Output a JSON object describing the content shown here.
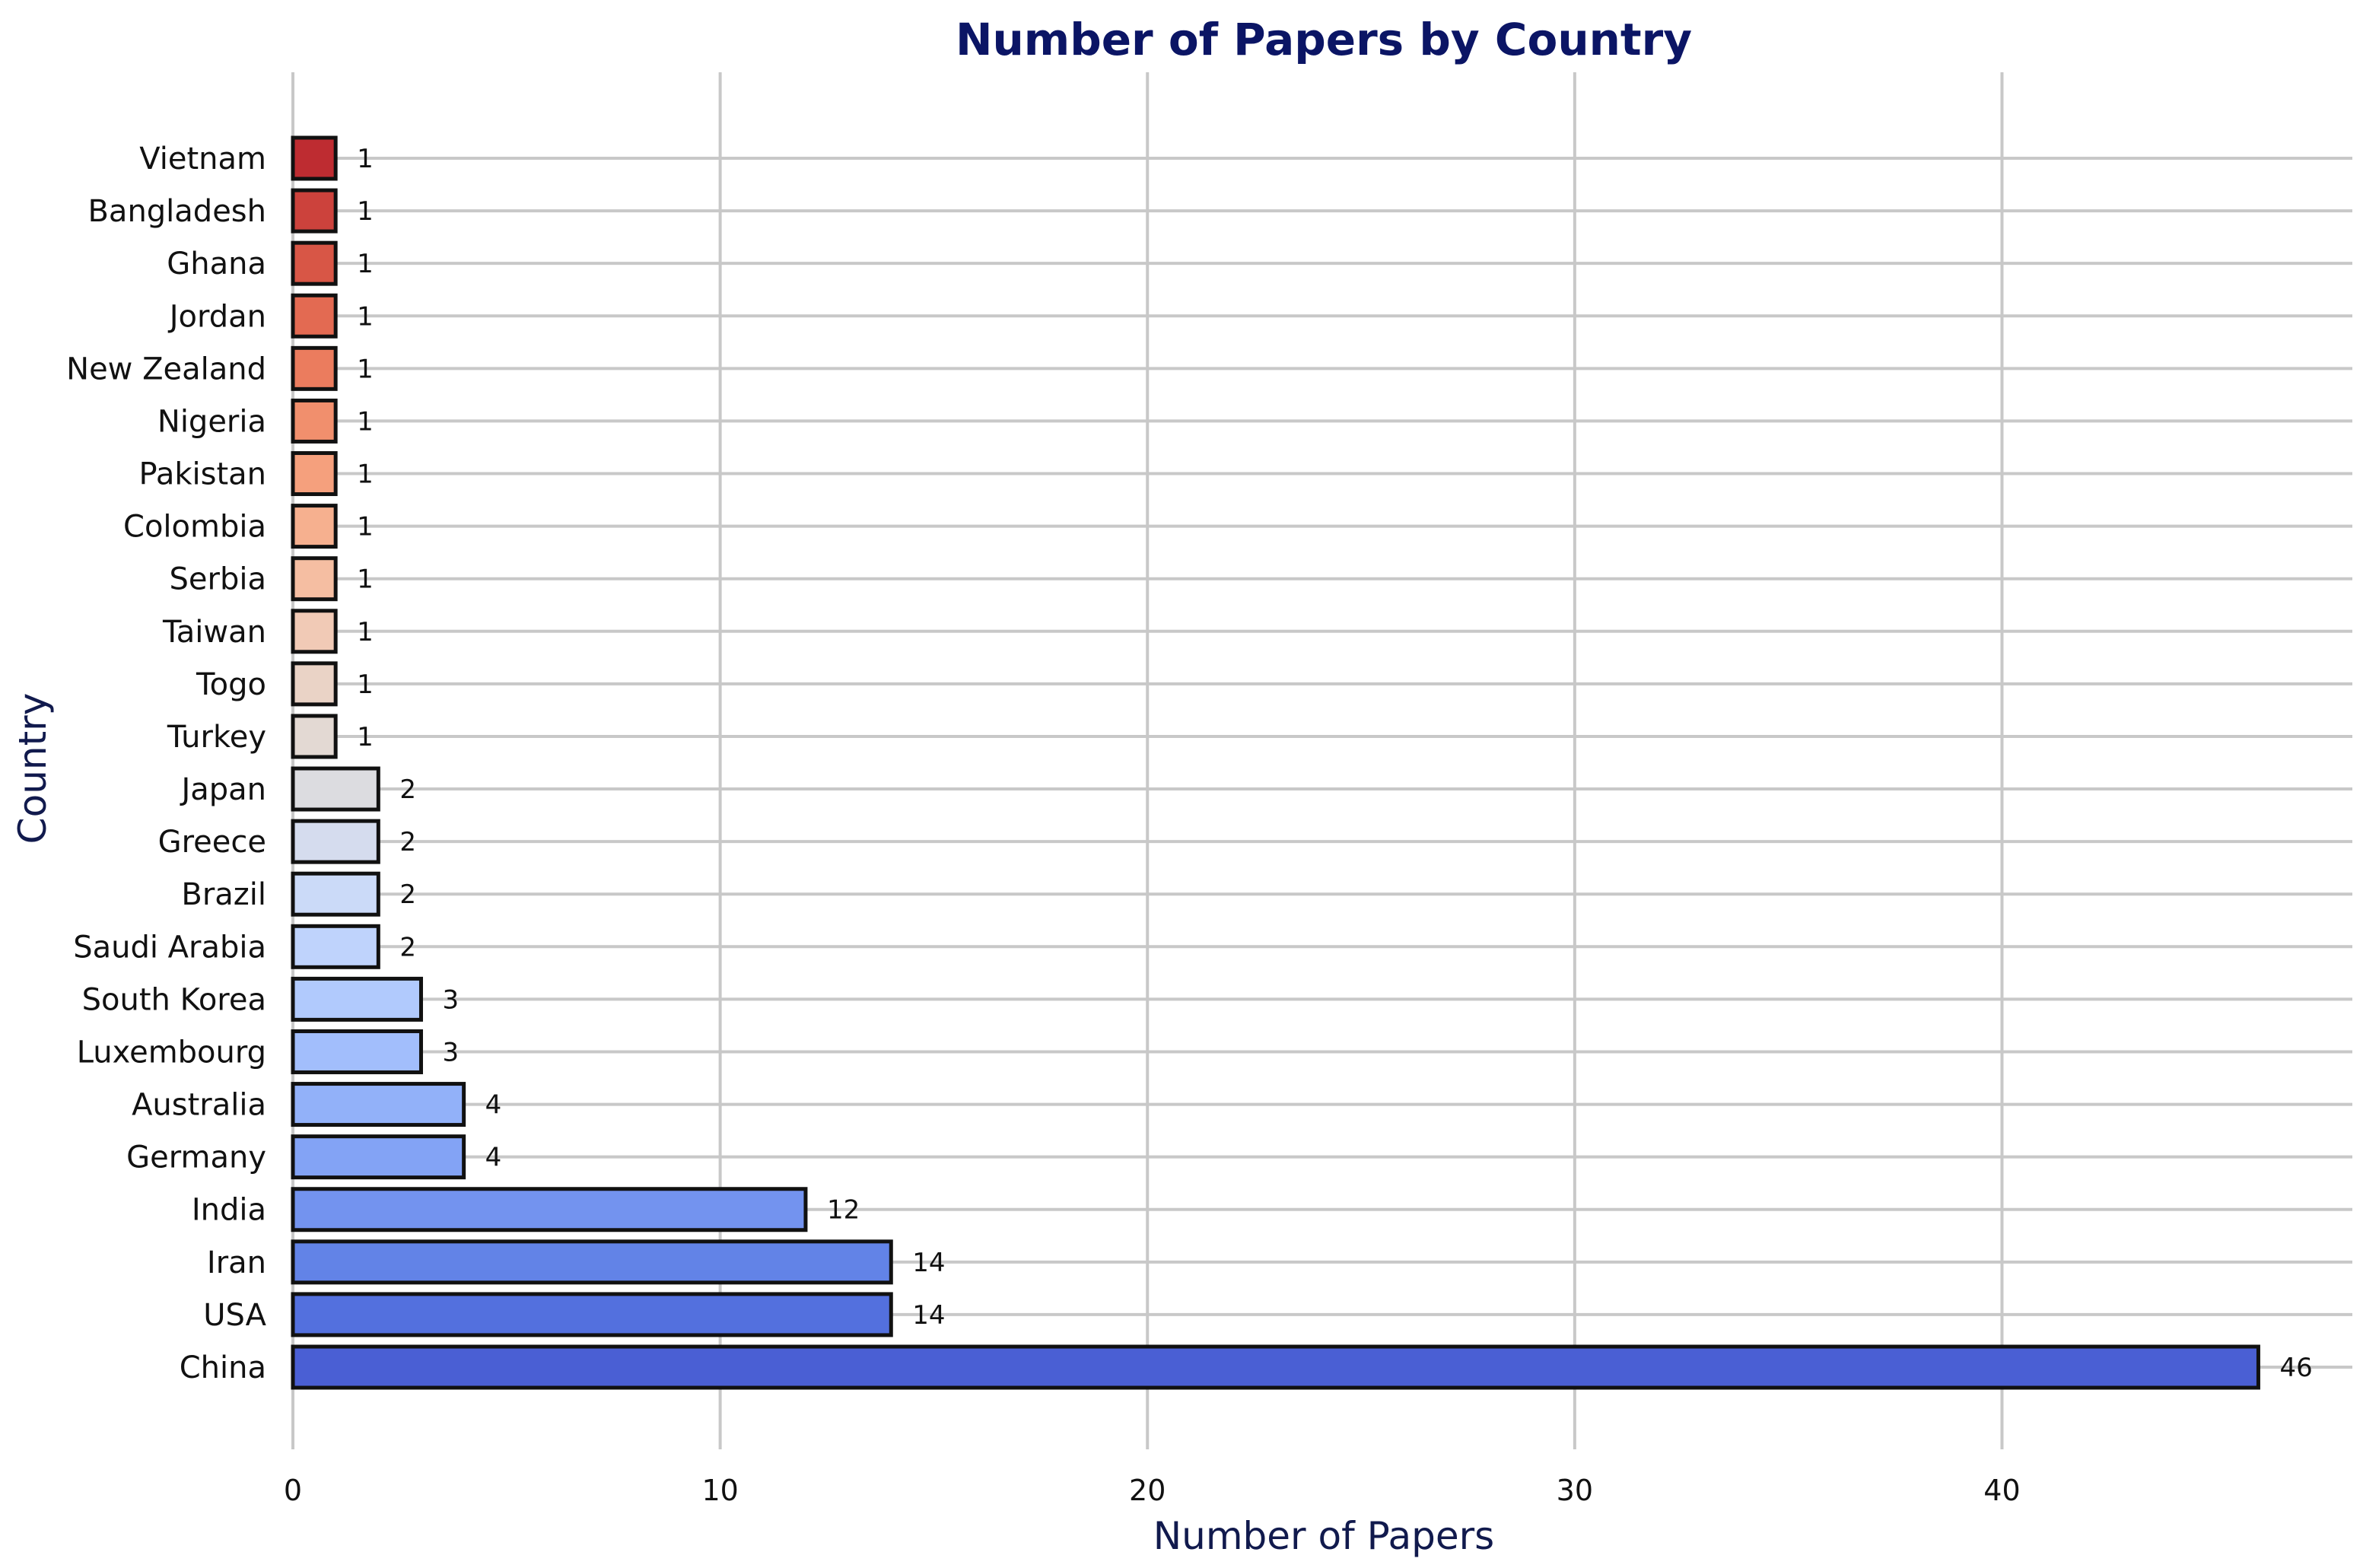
{
  "chart_data": {
    "type": "bar",
    "orientation": "horizontal",
    "title": "Number of Papers by Country",
    "xlabel": "Number of Papers",
    "ylabel": "Country",
    "xlim": [
      0,
      48.2
    ],
    "xticks": [
      0,
      10,
      20,
      30,
      40
    ],
    "grid": true,
    "categories": [
      "China",
      "USA",
      "Iran",
      "India",
      "Germany",
      "Australia",
      "Luxembourg",
      "South Korea",
      "Saudi Arabia",
      "Brazil",
      "Greece",
      "Japan",
      "Turkey",
      "Togo",
      "Taiwan",
      "Serbia",
      "Colombia",
      "Pakistan",
      "Nigeria",
      "New Zealand",
      "Jordan",
      "Ghana",
      "Bangladesh",
      "Vietnam"
    ],
    "values": [
      46,
      14,
      14,
      12,
      4,
      4,
      3,
      3,
      2,
      2,
      2,
      2,
      1,
      1,
      1,
      1,
      1,
      1,
      1,
      1,
      1,
      1,
      1,
      1
    ],
    "colors": [
      "#4a5fd4",
      "#5370de",
      "#6283e7",
      "#7393ef",
      "#83a3f5",
      "#92b1f9",
      "#a2befc",
      "#b1cafd",
      "#bfd3fc",
      "#cbdaf8",
      "#d5dcee",
      "#dcdce0",
      "#e3d9d3",
      "#ead3c6",
      "#f1cab6",
      "#f5bea2",
      "#f6b08f",
      "#f5a07d",
      "#f18f6d",
      "#eb7c5e",
      "#e36a52",
      "#d85646",
      "#cc423c",
      "#be2c31"
    ]
  }
}
